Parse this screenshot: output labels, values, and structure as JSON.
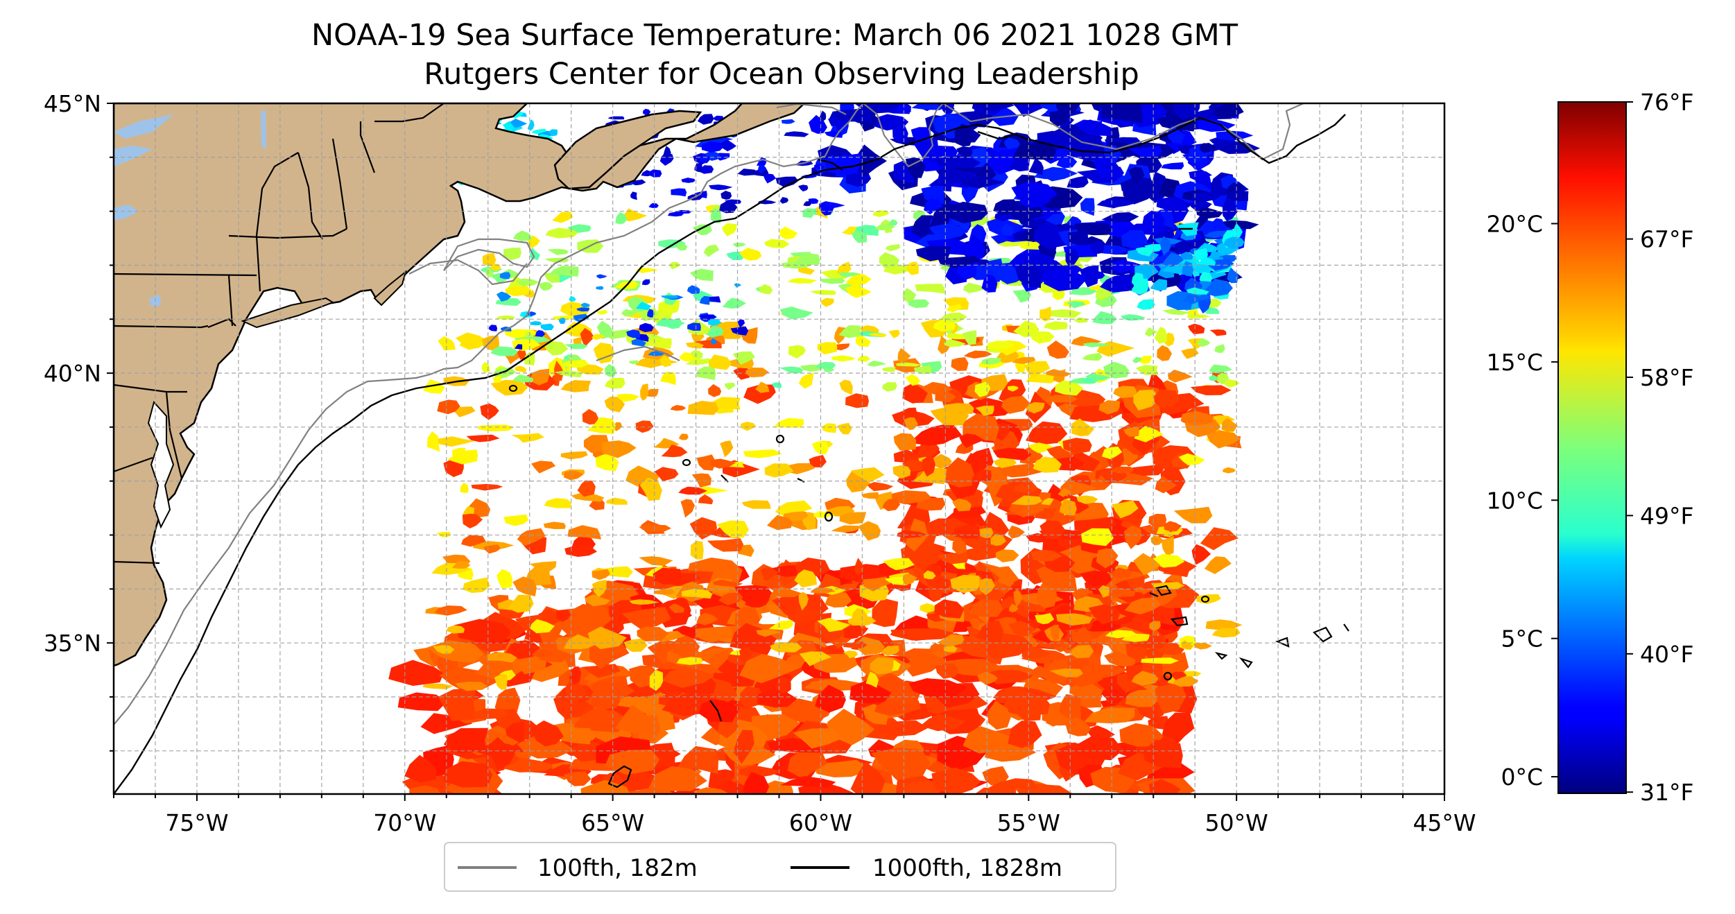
{
  "title": {
    "line1": "NOAA-19 Sea Surface Temperature: March 06 2021 1028 GMT",
    "line2": "Rutgers Center for Ocean Observing Leadership"
  },
  "map": {
    "lon_range": [
      -77,
      -45
    ],
    "lat_range": [
      32.2,
      45
    ],
    "lon_ticks": [
      {
        "value": -75,
        "label": "75°W"
      },
      {
        "value": -70,
        "label": "70°W"
      },
      {
        "value": -65,
        "label": "65°W"
      },
      {
        "value": -60,
        "label": "60°W"
      },
      {
        "value": -55,
        "label": "55°W"
      },
      {
        "value": -50,
        "label": "50°W"
      },
      {
        "value": -45,
        "label": "45°W"
      }
    ],
    "lat_ticks": [
      {
        "value": 45,
        "label": "45°N"
      },
      {
        "value": 40,
        "label": "40°N"
      },
      {
        "value": 35,
        "label": "35°N"
      }
    ],
    "gridlines": true,
    "land_color": "#d2b48c",
    "lake_color": "#9ec3ea",
    "coastline_color": "#000000",
    "cloud_mask_color": "#ffffff"
  },
  "legend": {
    "placement": "below-map",
    "entries": [
      {
        "label": "100fth, 182m",
        "color": "#808080"
      },
      {
        "label": "1000fth, 1828m",
        "color": "#000000"
      }
    ]
  },
  "colorbar": {
    "colormap": "jet",
    "range_c": [
      -0.6,
      24.4
    ],
    "celsius_ticks": [
      {
        "value": 0,
        "label": "0°C"
      },
      {
        "value": 5,
        "label": "5°C"
      },
      {
        "value": 10,
        "label": "10°C"
      },
      {
        "value": 15,
        "label": "15°C"
      },
      {
        "value": 20,
        "label": "20°C"
      }
    ],
    "fahrenheit_ticks": [
      {
        "value": 31,
        "label": "31°F"
      },
      {
        "value": 40,
        "label": "40°F"
      },
      {
        "value": 49,
        "label": "49°F"
      },
      {
        "value": 58,
        "label": "58°F"
      },
      {
        "value": 67,
        "label": "67°F"
      },
      {
        "value": 76,
        "label": "76°F"
      }
    ]
  }
}
